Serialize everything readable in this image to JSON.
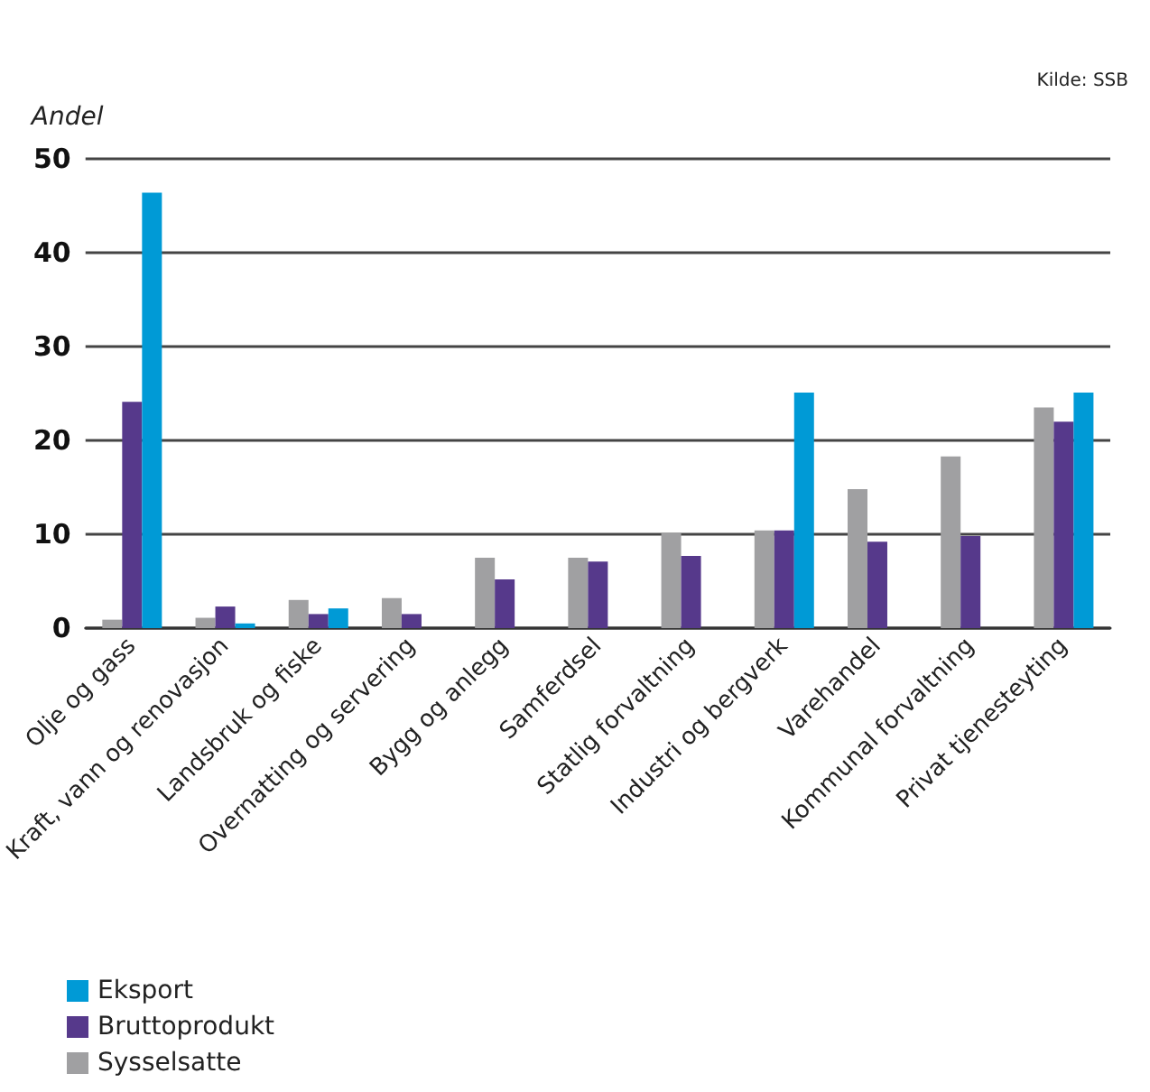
{
  "chart_data": {
    "type": "bar",
    "ylabel": "Andel",
    "annotations": [
      "Kilde: SSB"
    ],
    "categories": [
      "Olje og gass",
      "Kraft, vann og renovasjon",
      "Landsbruk og fiske",
      "Overnatting og servering",
      "Bygg og anlegg",
      "Samferdsel",
      "Statlig forvaltning",
      "Industri og bergverk",
      "Varehandel",
      "Kommunal forvaltning",
      "Privat tjenesteyting"
    ],
    "series": [
      {
        "name": "Sysselsatte",
        "color": "#a0a0a2",
        "values": [
          0.9,
          1.1,
          3.0,
          3.2,
          7.5,
          7.5,
          10.1,
          10.4,
          14.8,
          18.3,
          23.5
        ]
      },
      {
        "name": "Bruttoprodukt",
        "color": "#56398b",
        "values": [
          24.1,
          2.3,
          1.5,
          1.5,
          5.2,
          7.1,
          7.7,
          10.4,
          9.2,
          9.8,
          22.0
        ]
      },
      {
        "name": "Eksport",
        "color": "#009ad6",
        "values": [
          46.4,
          0.5,
          2.1,
          null,
          null,
          null,
          null,
          25.1,
          null,
          null,
          25.1
        ]
      }
    ],
    "ylim": [
      0,
      50
    ],
    "yticks": [
      0,
      10,
      20,
      30,
      40,
      50
    ],
    "grid": "y",
    "legend": "bottom left"
  }
}
